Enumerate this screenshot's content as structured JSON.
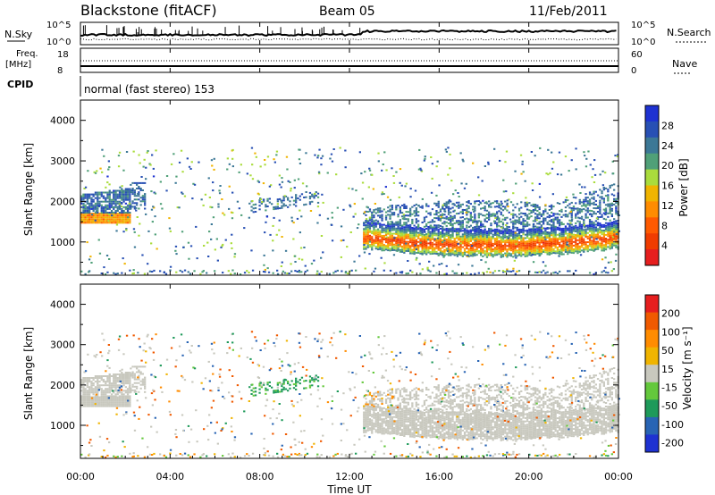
{
  "header": {
    "title": "Blackstone (fitACF)",
    "beam": "Beam 05",
    "date": "11/Feb/2011"
  },
  "sky_panel": {
    "left_label": "N.Sky",
    "right_label": "N.Search",
    "left_ticks": [
      "10^5",
      "10^0"
    ],
    "right_ticks": [
      "10^5",
      "10^0"
    ]
  },
  "freq_panel": {
    "label_line1": "Freq.",
    "label_line2": "[MHz]",
    "right_label": "Nave",
    "left_ticks": [
      "18",
      "8"
    ],
    "right_ticks": [
      "60",
      "0"
    ]
  },
  "cpid": {
    "label": "CPID",
    "value": "normal (fast stereo) 153"
  },
  "x_axis": {
    "label": "Time UT",
    "ticks": [
      "00:00",
      "04:00",
      "08:00",
      "12:00",
      "16:00",
      "20:00",
      "00:00"
    ]
  },
  "power_panel": {
    "ylabel": "Slant Range [km]",
    "yticks": [
      "4000",
      "3000",
      "2000",
      "1000"
    ],
    "colorbar_label": "Power [dB]",
    "colorbar_ticks": [
      "28",
      "24",
      "20",
      "16",
      "12",
      "8",
      "4"
    ],
    "colors": [
      "#1e32d2",
      "#2850b4",
      "#3c7896",
      "#50a078",
      "#aadc3c",
      "#f0b400",
      "#ff8c00",
      "#ff5a00",
      "#f03c00",
      "#e61e1e"
    ]
  },
  "velocity_panel": {
    "ylabel": "Slant Range [km]",
    "yticks": [
      "4000",
      "3000",
      "2000",
      "1000"
    ],
    "colorbar_label": "Velocity [m s⁻¹]",
    "colorbar_ticks": [
      "200",
      "100",
      "50",
      "15",
      "-15",
      "-50",
      "-100",
      "-200"
    ],
    "colors": [
      "#1e32d2",
      "#2864b4",
      "#1e9a5a",
      "#64c83c",
      "#c8c8be",
      "#f0b400",
      "#ff8c00",
      "#f05a00",
      "#e61e1e"
    ],
    "ground_color": "#c8c8be"
  },
  "chart_data": {
    "type": "heatmap",
    "x_range_hours": [
      0,
      24
    ],
    "y_range_km": [
      180,
      4500
    ],
    "power_colorbar_range_db": [
      0,
      32
    ],
    "velocity_colorbar_range": [
      -250,
      250
    ],
    "features": [
      {
        "name": "dusk-band",
        "t": [
          0,
          2.2
        ],
        "range_km": [
          1400,
          2200
        ],
        "core_km": 1600,
        "power_db": 20
      },
      {
        "name": "upper-scatter-early",
        "t": [
          0,
          2.8
        ],
        "range_km": [
          1800,
          2400
        ],
        "power_db": 6
      },
      {
        "name": "main-band",
        "t": [
          12.6,
          24
        ],
        "range_km": [
          700,
          1400
        ],
        "core_km": 1000,
        "power_db": 26
      },
      {
        "name": "upper-scatter-late",
        "t": [
          12.6,
          24
        ],
        "range_km": [
          1200,
          2800
        ],
        "power_db": 7
      },
      {
        "name": "mid-patch",
        "t": [
          7.5,
          10.5
        ],
        "range_km": [
          1700,
          2100
        ],
        "power_db": 6
      }
    ]
  }
}
